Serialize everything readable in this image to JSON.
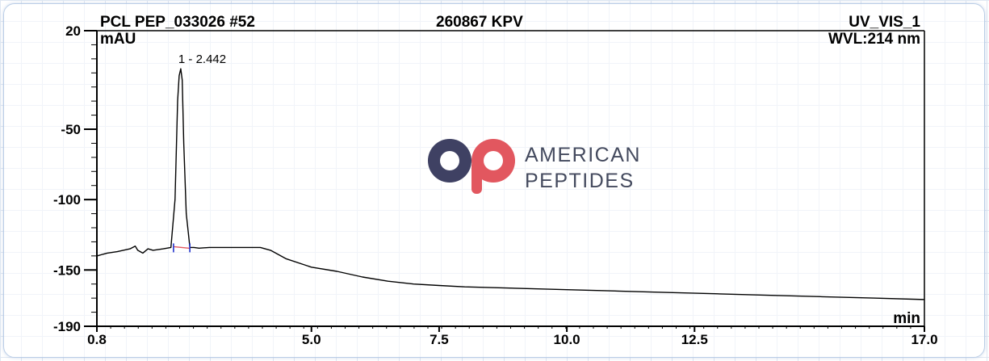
{
  "header": {
    "left": "PCL PEP_033026 #52",
    "center": "260867 KPV",
    "right": "UV_VIS_1",
    "wavelength": "WVL:214 nm"
  },
  "logo": {
    "line1": "AMERICAN",
    "line2": "PEPTIDES",
    "circle_color": "#3f4163",
    "accent_color": "#e2575f"
  },
  "chart_data": {
    "type": "line",
    "xlabel": "min",
    "ylabel": "mAU",
    "xlim": [
      0.8,
      17.0
    ],
    "ylim": [
      -190,
      20
    ],
    "x_ticks": [
      0.8,
      5.0,
      7.5,
      10.0,
      12.5,
      17.0
    ],
    "x_tick_labels": [
      "0.8",
      "5.0",
      "7.5",
      "10.0",
      "12.5",
      "17.0"
    ],
    "y_ticks": [
      20,
      -50,
      -100,
      -150,
      -190
    ],
    "y_tick_labels": [
      "20",
      "-50",
      "-100",
      "-150",
      "-190"
    ],
    "peak_label": "1 - 2.442",
    "peak": {
      "x": 2.442,
      "y": -7
    },
    "series": [
      {
        "x": [
          0.8,
          1.0,
          1.2,
          1.45,
          1.55,
          1.6,
          1.7,
          1.8,
          1.9,
          2.1,
          2.25,
          2.33,
          2.38,
          2.41,
          2.442,
          2.47,
          2.5,
          2.55,
          2.62,
          2.7,
          2.8,
          3.0,
          3.5,
          4.0,
          4.2,
          4.5,
          5.0,
          5.5,
          6.0,
          6.5,
          7.0,
          7.5,
          8.0,
          9.0,
          10.0,
          11.0,
          12.0,
          13.0,
          14.0,
          15.0,
          16.0,
          17.0
        ],
        "y": [
          -140,
          -138,
          -137,
          -135,
          -133,
          -136,
          -138,
          -135,
          -136,
          -135,
          -134,
          -100,
          -30,
          -12,
          -7,
          -15,
          -60,
          -110,
          -134,
          -134,
          -134.5,
          -134,
          -134,
          -134,
          -136,
          -142,
          -148,
          -151,
          -155,
          -158,
          -160,
          -161,
          -162,
          -163,
          -164,
          -165,
          -166,
          -167,
          -168,
          -169,
          -170,
          -171
        ]
      }
    ],
    "baseline_marks": [
      2.3,
      2.62
    ]
  }
}
